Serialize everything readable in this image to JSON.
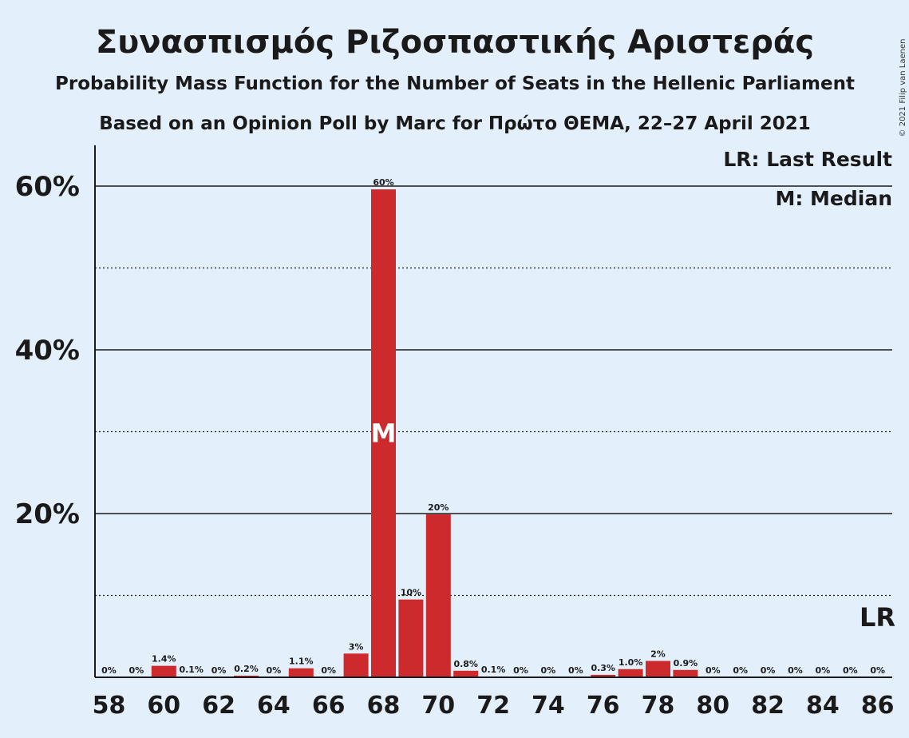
{
  "chart_data": {
    "type": "bar",
    "title": "Συνασπισμός Ριζοσπαστικής Αριστεράς",
    "subtitle": "Probability Mass Function for the Number of Seats in the Hellenic Parliament",
    "subtitle2": "Based on an Opinion Poll by Marc for Πρώτο ΘΕΜΑ, 22–27 April 2021",
    "copyright": "© 2021 Filip van Laenen",
    "categories": [
      58,
      59,
      60,
      61,
      62,
      63,
      64,
      65,
      66,
      67,
      68,
      69,
      70,
      71,
      72,
      73,
      74,
      75,
      76,
      77,
      78,
      79,
      80,
      81,
      82,
      83,
      84,
      85,
      86
    ],
    "values": [
      0,
      0,
      1.4,
      0.1,
      0,
      0.2,
      0,
      1.1,
      0,
      3,
      60,
      10,
      20,
      0.8,
      0.1,
      0,
      0,
      0,
      0.3,
      1.0,
      2,
      0.9,
      0,
      0,
      0,
      0,
      0,
      0,
      0
    ],
    "plot_values": [
      0,
      0,
      1.4,
      0.1,
      0,
      0.2,
      0,
      1.1,
      0,
      2.9,
      59.6,
      9.5,
      19.9,
      0.8,
      0.1,
      0,
      0,
      0,
      0.3,
      1.0,
      2.0,
      0.9,
      0,
      0,
      0,
      0,
      0,
      0,
      0
    ],
    "labels": [
      "0%",
      "0%",
      "1.4%",
      "0.1%",
      "0%",
      "0.2%",
      "0%",
      "1.1%",
      "0%",
      "3%",
      "60%",
      "10%",
      "20%",
      "0.8%",
      "0.1%",
      "0%",
      "0%",
      "0%",
      "0.3%",
      "1.0%",
      "2%",
      "0.9%",
      "0%",
      "0%",
      "0%",
      "0%",
      "0%",
      "0%",
      "0%"
    ],
    "x_tick_labels": [
      "58",
      "60",
      "62",
      "64",
      "66",
      "68",
      "70",
      "72",
      "74",
      "76",
      "78",
      "80",
      "82",
      "84",
      "86"
    ],
    "y_ticks": [
      20,
      40,
      60
    ],
    "y_tick_labels": [
      "20%",
      "40%",
      "60%"
    ],
    "y_minor_ticks": [
      10,
      30,
      50
    ],
    "ylim": [
      0,
      65
    ],
    "median": 68,
    "median_label": "M",
    "last_result_label": "LR",
    "legend": [
      "LR: Last Result",
      "M: Median"
    ],
    "legend_position": "top-right",
    "bar_color": "#cc2a2c",
    "background_color": "#e3f0fc"
  }
}
